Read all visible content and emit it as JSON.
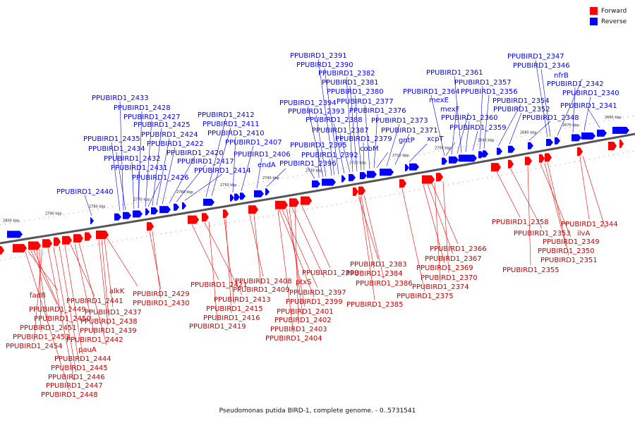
{
  "legend": {
    "forward_label": "Forward",
    "reverse_label": "Reverse",
    "forward_color": "#ff0000",
    "reverse_color": "#0000ff"
  },
  "caption": "Pseudomonas putida BIRD-1, complete genome. - 0..5731541",
  "scale": {
    "ticks": [
      "2800 kbp",
      "2790 kbp",
      "2780 kbp",
      "2770 kbp",
      "2760 kbp",
      "2750 kbp",
      "2740 kbp",
      "2730 kbp",
      "2720 kbp",
      "2710 kbp",
      "2700 kbp",
      "2690 kbp",
      "2680 kbp",
      "2670 kbp",
      "2660 kbp"
    ]
  },
  "reverse_genes": [
    "PPUBIRD1_2440",
    "PPUBIRD1_2435",
    "PPUBIRD1_2434",
    "PPUBIRD1_2433",
    "PPUBIRD1_2432",
    "PPUBIRD1_2431",
    "PPUBIRD1_2428",
    "PPUBIRD1_2427",
    "PPUBIRD1_2426",
    "PPUBIRD1_2425",
    "PPUBIRD1_2424",
    "PPUBIRD1_2422",
    "PPUBIRD1_2420",
    "PPUBIRD1_2417",
    "PPUBIRD1_2414",
    "PPUBIRD1_2412",
    "PPUBIRD1_2411",
    "PPUBIRD1_2410",
    "PPUBIRD1_2407",
    "PPUBIRD1_2406",
    "endA",
    "PPUBIRD1_2396",
    "PPUBIRD1_2395",
    "PPUBIRD1_2394",
    "PPUBIRD1_2393",
    "PPUBIRD1_2392",
    "PPUBIRD1_2391",
    "PPUBIRD1_2390",
    "PPUBIRD1_2388",
    "PPUBIRD1_2387",
    "PPUBIRD1_2382",
    "PPUBIRD1_2381",
    "PPUBIRD1_2380",
    "PPUBIRD1_2379",
    "PPUBIRD1_2377",
    "PPUBIRD1_2376",
    "cobM",
    "PPUBIRD1_2373",
    "PPUBIRD1_2371",
    "gntP",
    "PPUBIRD1_2364",
    "mexE",
    "mexF",
    "xcpT",
    "PPUBIRD1_2361",
    "PPUBIRD1_2360",
    "PPUBIRD1_2359",
    "PPUBIRD1_2357",
    "PPUBIRD1_2356",
    "PPUBIRD1_2354",
    "PPUBIRD1_2352",
    "PPUBIRD1_2348",
    "PPUBIRD1_2347",
    "PPUBIRD1_2346",
    "nfrB",
    "PPUBIRD1_2342",
    "PPUBIRD1_2340",
    "PPUBIRD1_2341"
  ],
  "forward_genes": [
    "fadB",
    "PPUBIRD1_2449",
    "PPUBIRD1_2450",
    "PPUBIRD1_2451",
    "PPUBIRD1_2453",
    "PPUBIRD1_2454",
    "PPUBIRD1_2441",
    "alkK",
    "PPUBIRD1_2437",
    "PPUBIRD1_2438",
    "PPUBIRD1_2439",
    "PPUBIRD1_2442",
    "pauA",
    "PPUBIRD1_2444",
    "PPUBIRD1_2445",
    "PPUBIRD1_2446",
    "PPUBIRD1_2447",
    "PPUBIRD1_2448",
    "PPUBIRD1_2429",
    "PPUBIRD1_2430",
    "PPUBIRD1_2421",
    "PPUBIRD1_2413",
    "PPUBIRD1_2415",
    "PPUBIRD1_2416",
    "PPUBIRD1_2419",
    "PPUBIRD1_2408",
    "PPUBIRD1_2409",
    "ptxS",
    "PPUBIRD1_2398",
    "PPUBIRD1_2397",
    "PPUBIRD1_2399",
    "PPUBIRD1_2401",
    "PPUBIRD1_2402",
    "PPUBIRD1_2403",
    "PPUBIRD1_2404",
    "PPUBIRD1_2383",
    "PPUBIRD1_2384",
    "PPUBIRD1_2386",
    "PPUBIRD1_2385",
    "PPUBIRD1_2366",
    "PPUBIRD1_2367",
    "PPUBIRD1_2369",
    "PPUBIRD1_2370",
    "PPUBIRD1_2374",
    "PPUBIRD1_2375",
    "PPUBIRD1_2358",
    "PPUBIRD1_2353",
    "PPUBIRD1_2355",
    "PPUBIRD1_2344",
    "ilvA",
    "PPUBIRD1_2349",
    "PPUBIRD1_2350",
    "PPUBIRD1_2351"
  ]
}
